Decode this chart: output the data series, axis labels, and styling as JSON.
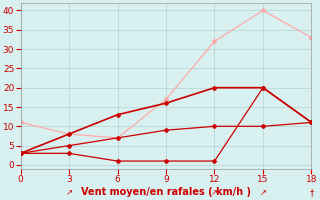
{
  "xlabel": "Vent moyen/en rafales ( km/h )",
  "x": [
    0,
    3,
    6,
    9,
    12,
    15,
    18
  ],
  "line1_y": [
    11,
    8,
    7,
    17,
    32,
    40,
    33
  ],
  "line2_y": [
    3,
    8,
    13,
    16,
    20,
    20,
    11
  ],
  "line3_y": [
    3,
    3,
    1,
    1,
    1,
    20,
    11
  ],
  "line4_y": [
    3,
    5,
    7,
    9,
    10,
    10,
    11
  ],
  "line1_color": "#ffaaaa",
  "line2_color": "#cc0000",
  "line3_color": "#cc0000",
  "line4_color": "#cc0000",
  "bg_color": "#d8f0f0",
  "grid_color": "#b8d8d8",
  "axis_label_color": "#cc0000",
  "tick_color": "#cc0000",
  "ylim": [
    -1,
    42
  ],
  "xlim": [
    0,
    18
  ],
  "yticks": [
    0,
    5,
    10,
    15,
    20,
    25,
    30,
    35,
    40
  ],
  "xticks": [
    0,
    3,
    6,
    9,
    12,
    15,
    18
  ],
  "xtick_arrows": {
    "3": "↗",
    "12": "↗",
    "15": "↗",
    "18": "†"
  }
}
